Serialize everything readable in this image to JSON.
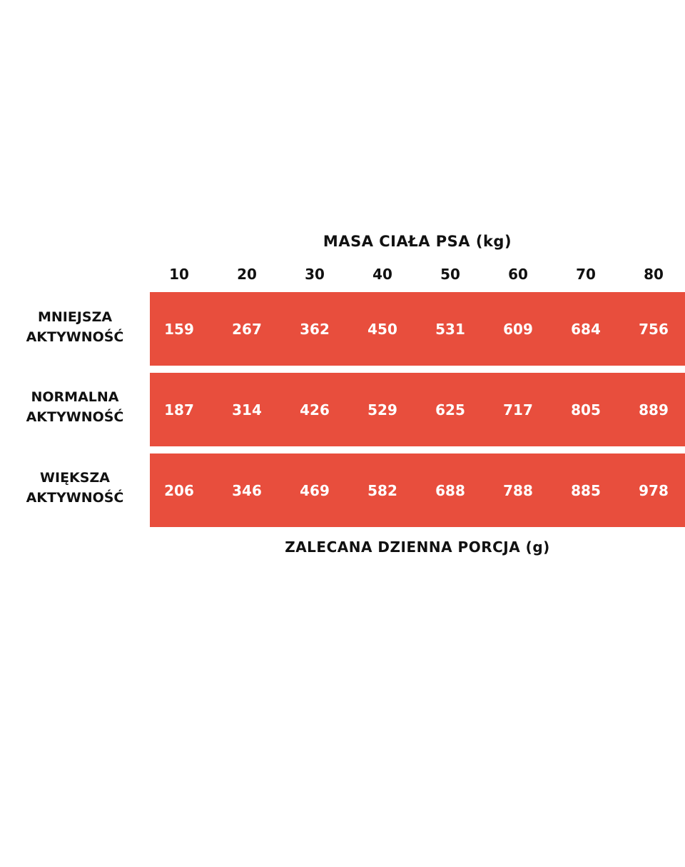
{
  "table": {
    "top_title": "MASA CIAŁA PSA (kg)",
    "bottom_title": "ZALECANA DZIENNA PORCJA (g)",
    "columns": [
      "10",
      "20",
      "30",
      "40",
      "50",
      "60",
      "70",
      "80"
    ],
    "rows": [
      {
        "label_line1": "MNIEJSZA",
        "label_line2": "AKTYWNOŚĆ",
        "values": [
          "159",
          "267",
          "362",
          "450",
          "531",
          "609",
          "684",
          "756"
        ]
      },
      {
        "label_line1": "NORMALNA",
        "label_line2": "AKTYWNOŚĆ",
        "values": [
          "187",
          "314",
          "426",
          "529",
          "625",
          "717",
          "805",
          "889"
        ]
      },
      {
        "label_line1": "WIĘKSZA",
        "label_line2": "AKTYWNOŚĆ",
        "values": [
          "206",
          "346",
          "469",
          "582",
          "688",
          "788",
          "885",
          "978"
        ]
      }
    ]
  },
  "colors": {
    "band": "#e84e3d",
    "text": "#111111",
    "value_text": "#ffffff"
  }
}
